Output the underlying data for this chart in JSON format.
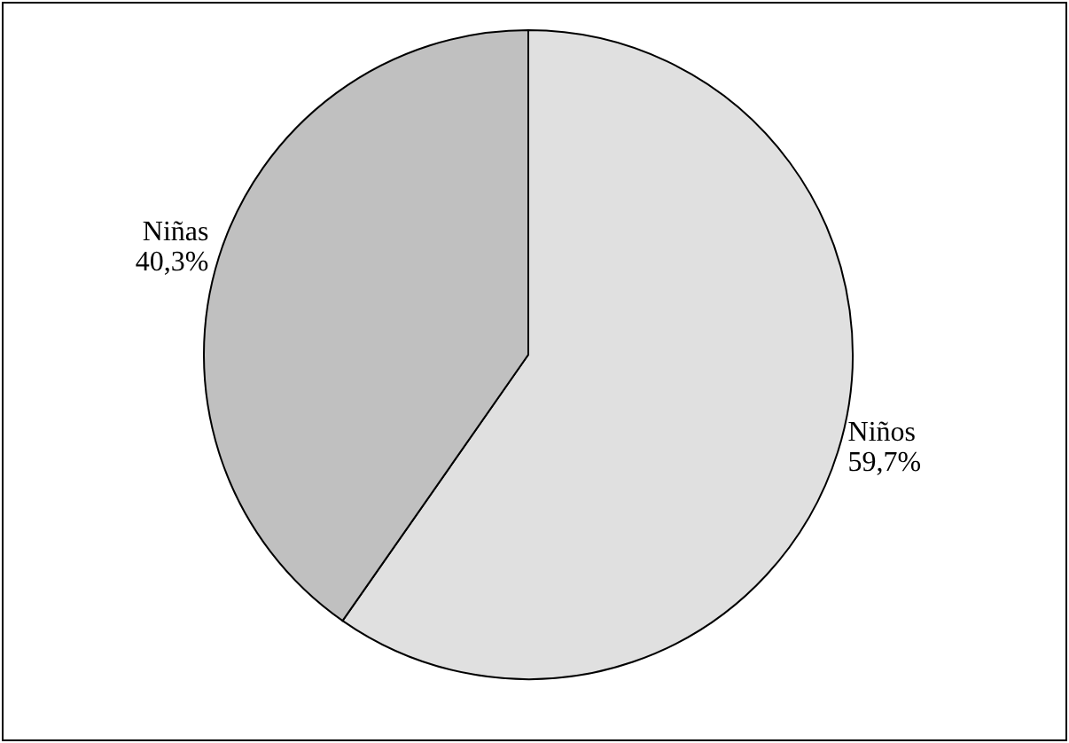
{
  "chart_data": {
    "type": "pie",
    "categories": [
      "Niños",
      "Niñas"
    ],
    "values": [
      59.7,
      40.3
    ],
    "colors": [
      "#e0e0e0",
      "#c0c0c0"
    ],
    "value_labels": [
      "59,7%",
      "40,3%"
    ]
  }
}
